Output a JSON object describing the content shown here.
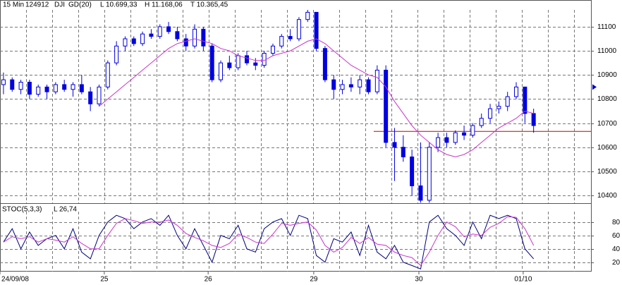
{
  "chart_data": {
    "type": "candlestick",
    "header": [
      "15 Min",
      "124912",
      "DJI",
      "GD(20)",
      "L 10.699,33",
      "H 11.168,06",
      "T 10.365,45"
    ],
    "x": [
      0,
      1,
      2,
      3,
      4,
      5,
      6,
      7,
      8,
      9,
      10,
      11,
      12,
      13,
      14,
      15,
      16,
      17,
      18,
      19,
      20,
      21,
      22,
      23,
      24,
      25,
      26,
      27,
      28,
      29,
      30,
      31,
      32,
      33,
      34,
      35,
      36,
      37,
      38,
      39,
      40,
      41,
      42,
      43,
      44,
      45,
      46,
      47,
      48,
      49,
      50,
      51,
      52,
      53,
      54,
      55,
      56,
      57,
      58,
      59,
      60,
      61
    ],
    "xlim": [
      -0.4,
      67.6
    ],
    "xticks": [
      {
        "value": -0.4,
        "label": "24/09/08"
      },
      {
        "value": 11.6,
        "label": "25"
      },
      {
        "value": 23.55,
        "label": "26"
      },
      {
        "value": 35.7,
        "label": "29"
      },
      {
        "value": 47.8,
        "label": "30"
      },
      {
        "value": 59.8,
        "label": "01/10"
      }
    ],
    "open": [
      10860,
      10880,
      10840,
      10870,
      10820,
      10850,
      10830,
      10860,
      10840,
      10860,
      10830,
      10780,
      10850,
      10950,
      11020,
      11050,
      11030,
      11070,
      11060,
      11100,
      11080,
      11050,
      11020,
      11090,
      11020,
      10880,
      10950,
      10930,
      10980,
      10950,
      10940,
      10990,
      11020,
      11060,
      11050,
      11130,
      11160,
      11010,
      10880,
      10840,
      10860,
      10850,
      10880,
      10830,
      10920,
      10620,
      10600,
      10560,
      10440,
      10380,
      10600,
      10640,
      10620,
      10660,
      10650,
      10690,
      10720,
      10760,
      10770,
      10810,
      10850,
      10740
    ],
    "high": [
      10910,
      10890,
      10880,
      10880,
      10860,
      10860,
      10870,
      10880,
      10870,
      10900,
      10850,
      10860,
      10960,
      11040,
      11060,
      11060,
      11080,
      11090,
      11110,
      11120,
      11100,
      11070,
      11110,
      11100,
      11030,
      10960,
      10980,
      10990,
      11000,
      10970,
      11000,
      11030,
      11070,
      11090,
      11140,
      11170,
      11160,
      11020,
      10900,
      10880,
      10890,
      10900,
      10890,
      10940,
      10940,
      10680,
      10650,
      10590,
      10620,
      10620,
      10660,
      10660,
      10670,
      10690,
      10700,
      10740,
      10780,
      10790,
      10830,
      10870,
      10850,
      10760
    ],
    "low": [
      10820,
      10830,
      10820,
      10800,
      10810,
      10800,
      10820,
      10830,
      10810,
      10820,
      10750,
      10770,
      10840,
      10940,
      11000,
      11020,
      11020,
      11050,
      11050,
      11070,
      11040,
      11000,
      11010,
      11000,
      10870,
      10870,
      10920,
      10920,
      10940,
      10920,
      10930,
      10980,
      11010,
      11040,
      11040,
      11120,
      11000,
      10870,
      10800,
      10820,
      10830,
      10820,
      10820,
      10820,
      10600,
      10460,
      10540,
      10400,
      10370,
      10370,
      10580,
      10600,
      10610,
      10630,
      10640,
      10680,
      10700,
      10740,
      10750,
      10800,
      10700,
      10660
    ],
    "close": [
      10880,
      10840,
      10870,
      10820,
      10850,
      10830,
      10860,
      10840,
      10860,
      10830,
      10780,
      10850,
      10950,
      11020,
      11050,
      11030,
      11070,
      11060,
      11100,
      11080,
      11050,
      11020,
      11090,
      11020,
      10880,
      10950,
      10930,
      10980,
      10950,
      10940,
      10990,
      11020,
      11060,
      11050,
      11130,
      11160,
      11010,
      10880,
      10840,
      10860,
      10850,
      10880,
      10830,
      10920,
      10620,
      10600,
      10560,
      10440,
      10380,
      10600,
      10640,
      10620,
      10660,
      10650,
      10690,
      10720,
      10760,
      10770,
      10810,
      10850,
      10740,
      10690
    ],
    "candle_color": "#0000e0",
    "moving_average": {
      "color": "#cc33cc",
      "values": [
        null,
        null,
        null,
        null,
        null,
        null,
        null,
        null,
        null,
        null,
        null,
        10770,
        10800,
        10830,
        10860,
        10890,
        10920,
        10950,
        10980,
        11010,
        11030,
        11040,
        11050,
        11040,
        11030,
        11010,
        11000,
        10980,
        10970,
        10960,
        10960,
        10980,
        10990,
        11000,
        11020,
        11040,
        11050,
        11030,
        11000,
        10970,
        10940,
        10920,
        10900,
        10890,
        10850,
        10790,
        10740,
        10690,
        10650,
        10620,
        10590,
        10570,
        10560,
        10570,
        10590,
        10620,
        10650,
        10680,
        10700,
        10720,
        10750,
        10740
      ]
    },
    "reference_line": {
      "value": 10666,
      "start": 42.6,
      "color": "#cc0000"
    },
    "last_price_marker": 10850,
    "ylim": [
      10368,
      11211
    ],
    "yticks": [
      10400,
      10500,
      10600,
      10700,
      10800,
      10900,
      11000,
      11100
    ],
    "grid": true,
    "stochastic": {
      "title": "STOC(5,3,3)",
      "label": "L 26,74",
      "ylim": [
        6,
        106
      ],
      "yticks": [
        20,
        40,
        60,
        80
      ],
      "series": [
        {
          "color": "#000080",
          "values": [
            50,
            70,
            40,
            65,
            45,
            55,
            60,
            40,
            70,
            35,
            25,
            60,
            80,
            90,
            85,
            70,
            80,
            85,
            75,
            90,
            60,
            40,
            70,
            45,
            20,
            60,
            55,
            75,
            40,
            35,
            70,
            80,
            85,
            60,
            90,
            85,
            30,
            20,
            55,
            50,
            65,
            30,
            75,
            35,
            25,
            45,
            20,
            15,
            10,
            80,
            90,
            70,
            60,
            45,
            80,
            55,
            90,
            85,
            90,
            85,
            40,
            25
          ]
        },
        {
          "color": "#cc33cc",
          "values": [
            50,
            58,
            55,
            58,
            50,
            55,
            53,
            50,
            58,
            48,
            40,
            40,
            60,
            78,
            85,
            82,
            78,
            80,
            80,
            83,
            75,
            63,
            57,
            52,
            45,
            42,
            48,
            62,
            57,
            50,
            48,
            62,
            78,
            75,
            78,
            80,
            68,
            45,
            35,
            42,
            57,
            48,
            57,
            47,
            45,
            35,
            30,
            27,
            15,
            35,
            60,
            80,
            73,
            58,
            62,
            60,
            72,
            78,
            88,
            87,
            70,
            45
          ]
        }
      ]
    }
  }
}
